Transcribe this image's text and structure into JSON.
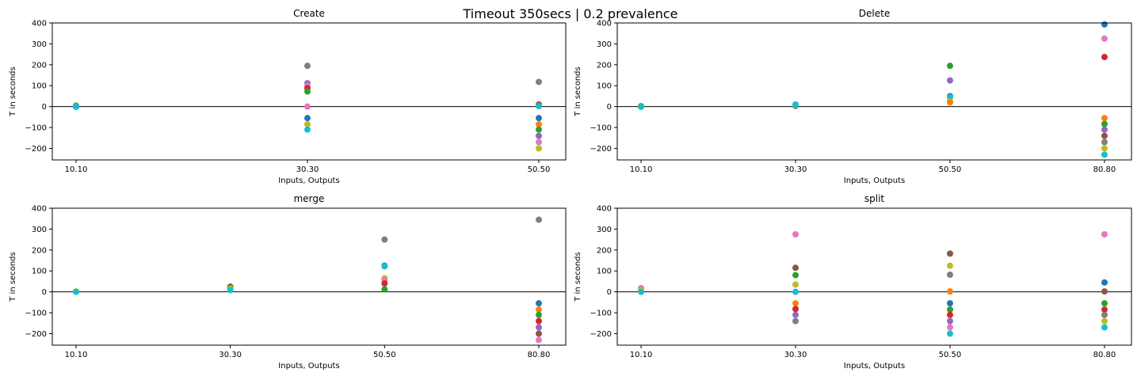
{
  "figure": {
    "title": "Timeout 350secs | 0.2 prevalence"
  },
  "chart_data": [
    {
      "type": "scatter",
      "title": "Create",
      "xlabel": "Inputs, Outputs",
      "ylabel": "T in seconds",
      "categories": [
        "10.10",
        "30.30",
        "50.50"
      ],
      "ylim": [
        -255,
        400
      ],
      "yticks": [
        -200,
        -100,
        0,
        100,
        200,
        300,
        400
      ],
      "reference_line_y": 0,
      "grid": false,
      "points": [
        {
          "x": "10.10",
          "y": 5,
          "color": "#7f7f7f"
        },
        {
          "x": "10.10",
          "y": 3,
          "color": "#bcbd22"
        },
        {
          "x": "10.10",
          "y": 1,
          "color": "#1f77b4"
        },
        {
          "x": "10.10",
          "y": -1,
          "color": "#17becf"
        },
        {
          "x": "30.30",
          "y": 195,
          "color": "#7f7f7f"
        },
        {
          "x": "30.30",
          "y": 112,
          "color": "#9467bd"
        },
        {
          "x": "30.30",
          "y": 100,
          "color": "#e377c2"
        },
        {
          "x": "30.30",
          "y": 88,
          "color": "#d62728"
        },
        {
          "x": "30.30",
          "y": 72,
          "color": "#2ca02c"
        },
        {
          "x": "30.30",
          "y": 0,
          "color": "#ff7f0e"
        },
        {
          "x": "30.30",
          "y": 0,
          "color": "#e377c2"
        },
        {
          "x": "30.30",
          "y": -55,
          "color": "#1f77b4"
        },
        {
          "x": "30.30",
          "y": -85,
          "color": "#bcbd22"
        },
        {
          "x": "30.30",
          "y": -110,
          "color": "#17becf"
        },
        {
          "x": "50.50",
          "y": 118,
          "color": "#7f7f7f"
        },
        {
          "x": "50.50",
          "y": 10,
          "color": "#8c564b"
        },
        {
          "x": "50.50",
          "y": 2,
          "color": "#17becf"
        },
        {
          "x": "50.50",
          "y": -55,
          "color": "#1f77b4"
        },
        {
          "x": "50.50",
          "y": -85,
          "color": "#ff7f0e"
        },
        {
          "x": "50.50",
          "y": -110,
          "color": "#2ca02c"
        },
        {
          "x": "50.50",
          "y": -140,
          "color": "#9467bd"
        },
        {
          "x": "50.50",
          "y": -170,
          "color": "#e377c2"
        },
        {
          "x": "50.50",
          "y": -200,
          "color": "#bcbd22"
        }
      ]
    },
    {
      "type": "scatter",
      "title": "Delete",
      "xlabel": "Inputs, Outputs",
      "ylabel": "T in seconds",
      "categories": [
        "10.10",
        "30.30",
        "50.50",
        "80.80"
      ],
      "ylim": [
        -255,
        400
      ],
      "yticks": [
        -200,
        -100,
        0,
        100,
        200,
        300,
        400
      ],
      "reference_line_y": 0,
      "grid": false,
      "points": [
        {
          "x": "10.10",
          "y": 2,
          "color": "#2ca02c"
        },
        {
          "x": "10.10",
          "y": -1,
          "color": "#17becf"
        },
        {
          "x": "30.30",
          "y": 3,
          "color": "#7f7f7f"
        },
        {
          "x": "30.30",
          "y": 10,
          "color": "#17becf"
        },
        {
          "x": "50.50",
          "y": 195,
          "color": "#2ca02c"
        },
        {
          "x": "50.50",
          "y": 125,
          "color": "#9467bd"
        },
        {
          "x": "50.50",
          "y": 50,
          "color": "#1f77b4"
        },
        {
          "x": "50.50",
          "y": 45,
          "color": "#17becf"
        },
        {
          "x": "50.50",
          "y": 25,
          "color": "#bcbd22"
        },
        {
          "x": "50.50",
          "y": 20,
          "color": "#ff7f0e"
        },
        {
          "x": "80.80",
          "y": 393,
          "color": "#1f77b4"
        },
        {
          "x": "80.80",
          "y": 325,
          "color": "#e377c2"
        },
        {
          "x": "80.80",
          "y": 237,
          "color": "#d62728"
        },
        {
          "x": "80.80",
          "y": -55,
          "color": "#ff7f0e"
        },
        {
          "x": "80.80",
          "y": -83,
          "color": "#2ca02c"
        },
        {
          "x": "80.80",
          "y": -110,
          "color": "#9467bd"
        },
        {
          "x": "80.80",
          "y": -140,
          "color": "#8c564b"
        },
        {
          "x": "80.80",
          "y": -170,
          "color": "#7f7f7f"
        },
        {
          "x": "80.80",
          "y": -200,
          "color": "#bcbd22"
        },
        {
          "x": "80.80",
          "y": -230,
          "color": "#17becf"
        }
      ]
    },
    {
      "type": "scatter",
      "title": "merge",
      "xlabel": "Inputs, Outputs",
      "ylabel": "T in seconds",
      "categories": [
        "10.10",
        "30.30",
        "50.50",
        "80.80"
      ],
      "ylim": [
        -255,
        400
      ],
      "yticks": [
        -200,
        -100,
        0,
        100,
        200,
        300,
        400
      ],
      "reference_line_y": 0,
      "grid": false,
      "points": [
        {
          "x": "10.10",
          "y": 2,
          "color": "#bcbd22"
        },
        {
          "x": "10.10",
          "y": 0,
          "color": "#17becf"
        },
        {
          "x": "30.30",
          "y": 25,
          "color": "#8c564b"
        },
        {
          "x": "30.30",
          "y": 20,
          "color": "#2ca02c"
        },
        {
          "x": "30.30",
          "y": 15,
          "color": "#bcbd22"
        },
        {
          "x": "30.30",
          "y": 8,
          "color": "#17becf"
        },
        {
          "x": "50.50",
          "y": 250,
          "color": "#7f7f7f"
        },
        {
          "x": "50.50",
          "y": 125,
          "color": "#1f77b4"
        },
        {
          "x": "50.50",
          "y": 122,
          "color": "#17becf"
        },
        {
          "x": "50.50",
          "y": 65,
          "color": "#bcbd22"
        },
        {
          "x": "50.50",
          "y": 55,
          "color": "#e377c2"
        },
        {
          "x": "50.50",
          "y": 40,
          "color": "#d62728"
        },
        {
          "x": "50.50",
          "y": 12,
          "color": "#2ca02c"
        },
        {
          "x": "80.80",
          "y": 345,
          "color": "#7f7f7f"
        },
        {
          "x": "80.80",
          "y": -55,
          "color": "#1f77b4"
        },
        {
          "x": "80.80",
          "y": -85,
          "color": "#ff7f0e"
        },
        {
          "x": "80.80",
          "y": -110,
          "color": "#2ca02c"
        },
        {
          "x": "80.80",
          "y": -140,
          "color": "#d62728"
        },
        {
          "x": "80.80",
          "y": -170,
          "color": "#9467bd"
        },
        {
          "x": "80.80",
          "y": -200,
          "color": "#8c564b"
        },
        {
          "x": "80.80",
          "y": -230,
          "color": "#e377c2"
        }
      ]
    },
    {
      "type": "scatter",
      "title": "split",
      "xlabel": "Inputs, Outputs",
      "ylabel": "T in seconds",
      "categories": [
        "10.10",
        "30.30",
        "50.50",
        "80.80"
      ],
      "ylim": [
        -255,
        400
      ],
      "yticks": [
        -200,
        -100,
        0,
        100,
        200,
        300,
        400
      ],
      "reference_line_y": 0,
      "grid": false,
      "points": [
        {
          "x": "10.10",
          "y": 18,
          "color": "#e377c2"
        },
        {
          "x": "10.10",
          "y": 5,
          "color": "#bcbd22"
        },
        {
          "x": "10.10",
          "y": 0,
          "color": "#17becf"
        },
        {
          "x": "30.30",
          "y": 275,
          "color": "#e377c2"
        },
        {
          "x": "30.30",
          "y": 115,
          "color": "#8c564b"
        },
        {
          "x": "30.30",
          "y": 80,
          "color": "#2ca02c"
        },
        {
          "x": "30.30",
          "y": 35,
          "color": "#bcbd22"
        },
        {
          "x": "30.30",
          "y": 0,
          "color": "#17becf"
        },
        {
          "x": "30.30",
          "y": -55,
          "color": "#ff7f0e"
        },
        {
          "x": "30.30",
          "y": -82,
          "color": "#d62728"
        },
        {
          "x": "30.30",
          "y": -110,
          "color": "#9467bd"
        },
        {
          "x": "30.30",
          "y": -140,
          "color": "#7f7f7f"
        },
        {
          "x": "50.50",
          "y": 183,
          "color": "#8c564b"
        },
        {
          "x": "50.50",
          "y": 125,
          "color": "#bcbd22"
        },
        {
          "x": "50.50",
          "y": 82,
          "color": "#7f7f7f"
        },
        {
          "x": "50.50",
          "y": 2,
          "color": "#ff7f0e"
        },
        {
          "x": "50.50",
          "y": -55,
          "color": "#1f77b4"
        },
        {
          "x": "50.50",
          "y": -85,
          "color": "#2ca02c"
        },
        {
          "x": "50.50",
          "y": -110,
          "color": "#d62728"
        },
        {
          "x": "50.50",
          "y": -140,
          "color": "#9467bd"
        },
        {
          "x": "50.50",
          "y": -170,
          "color": "#e377c2"
        },
        {
          "x": "50.50",
          "y": -200,
          "color": "#17becf"
        },
        {
          "x": "80.80",
          "y": 275,
          "color": "#e377c2"
        },
        {
          "x": "80.80",
          "y": 45,
          "color": "#1f77b4"
        },
        {
          "x": "80.80",
          "y": 2,
          "color": "#8c564b"
        },
        {
          "x": "80.80",
          "y": -55,
          "color": "#2ca02c"
        },
        {
          "x": "80.80",
          "y": -85,
          "color": "#d62728"
        },
        {
          "x": "80.80",
          "y": -110,
          "color": "#7f7f7f"
        },
        {
          "x": "80.80",
          "y": -140,
          "color": "#bcbd22"
        },
        {
          "x": "80.80",
          "y": -170,
          "color": "#17becf"
        }
      ]
    }
  ]
}
